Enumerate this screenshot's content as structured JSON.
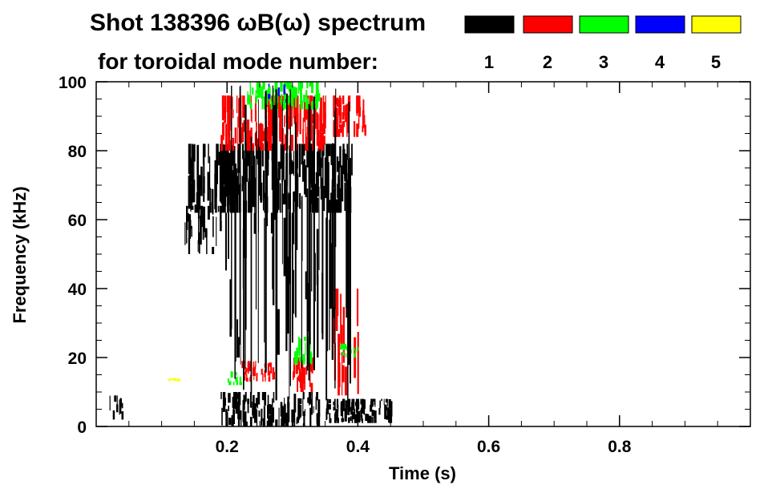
{
  "chart_data": {
    "type": "heatmap",
    "title": "Shot 138396 ωB(ω) spectrum",
    "subtitle": "for toroidal mode number:",
    "xlabel": "Time (s)",
    "ylabel": "Frequency (kHz)",
    "xlim": [
      0.0,
      1.0
    ],
    "ylim": [
      0,
      100
    ],
    "xticks": [
      {
        "value": 0.2,
        "label": "0.2"
      },
      {
        "value": 0.4,
        "label": "0.4"
      },
      {
        "value": 0.6,
        "label": "0.6"
      },
      {
        "value": 0.8,
        "label": "0.8"
      }
    ],
    "yticks": [
      {
        "value": 0,
        "label": "0"
      },
      {
        "value": 20,
        "label": "20"
      },
      {
        "value": 40,
        "label": "40"
      },
      {
        "value": 60,
        "label": "60"
      },
      {
        "value": 80,
        "label": "80"
      },
      {
        "value": 100,
        "label": "100"
      }
    ],
    "legend": [
      {
        "mode": "1",
        "color": "#000000"
      },
      {
        "mode": "2",
        "color": "#ff0000"
      },
      {
        "mode": "3",
        "color": "#00ff00"
      },
      {
        "mode": "4",
        "color": "#0000ff"
      },
      {
        "mode": "5",
        "color": "#ffff00"
      }
    ],
    "regions": [
      {
        "mode": 1,
        "t0": 0.14,
        "t1": 0.39,
        "f0": 62,
        "f1": 82,
        "density": 0.9
      },
      {
        "mode": 1,
        "t0": 0.135,
        "t1": 0.19,
        "f0": 50,
        "f1": 64,
        "density": 0.5
      },
      {
        "mode": 1,
        "t0": 0.19,
        "t1": 0.36,
        "f0": 20,
        "f1": 62,
        "density": 0.12
      },
      {
        "mode": 1,
        "t0": 0.19,
        "t1": 0.34,
        "f0": 0,
        "f1": 10,
        "density": 0.6
      },
      {
        "mode": 1,
        "t0": 0.35,
        "t1": 0.45,
        "f0": 1,
        "f1": 8,
        "density": 0.85
      },
      {
        "mode": 1,
        "t0": 0.02,
        "t1": 0.04,
        "f0": 2,
        "f1": 9,
        "density": 0.4
      },
      {
        "mode": 2,
        "t0": 0.19,
        "t1": 0.35,
        "f0": 80,
        "f1": 96,
        "density": 0.85
      },
      {
        "mode": 2,
        "t0": 0.36,
        "t1": 0.41,
        "f0": 84,
        "f1": 96,
        "density": 0.75
      },
      {
        "mode": 2,
        "t0": 0.3,
        "t1": 0.33,
        "f0": 10,
        "f1": 20,
        "density": 0.7
      },
      {
        "mode": 2,
        "t0": 0.36,
        "t1": 0.4,
        "f0": 9,
        "f1": 40,
        "density": 0.35
      },
      {
        "mode": 2,
        "t0": 0.22,
        "t1": 0.27,
        "f0": 13,
        "f1": 19,
        "density": 0.6
      },
      {
        "mode": 3,
        "t0": 0.23,
        "t1": 0.34,
        "f0": 92,
        "f1": 100,
        "density": 0.7
      },
      {
        "mode": 3,
        "t0": 0.3,
        "t1": 0.33,
        "f0": 18,
        "f1": 26,
        "density": 0.7
      },
      {
        "mode": 3,
        "t0": 0.37,
        "t1": 0.4,
        "f0": 20,
        "f1": 24,
        "density": 0.6
      },
      {
        "mode": 3,
        "t0": 0.2,
        "t1": 0.22,
        "f0": 12,
        "f1": 16,
        "density": 0.5
      },
      {
        "mode": 4,
        "t0": 0.26,
        "t1": 0.29,
        "f0": 94,
        "f1": 100,
        "density": 0.15
      },
      {
        "mode": 5,
        "t0": 0.11,
        "t1": 0.125,
        "f0": 13,
        "f1": 14,
        "density": 0.9
      }
    ]
  }
}
